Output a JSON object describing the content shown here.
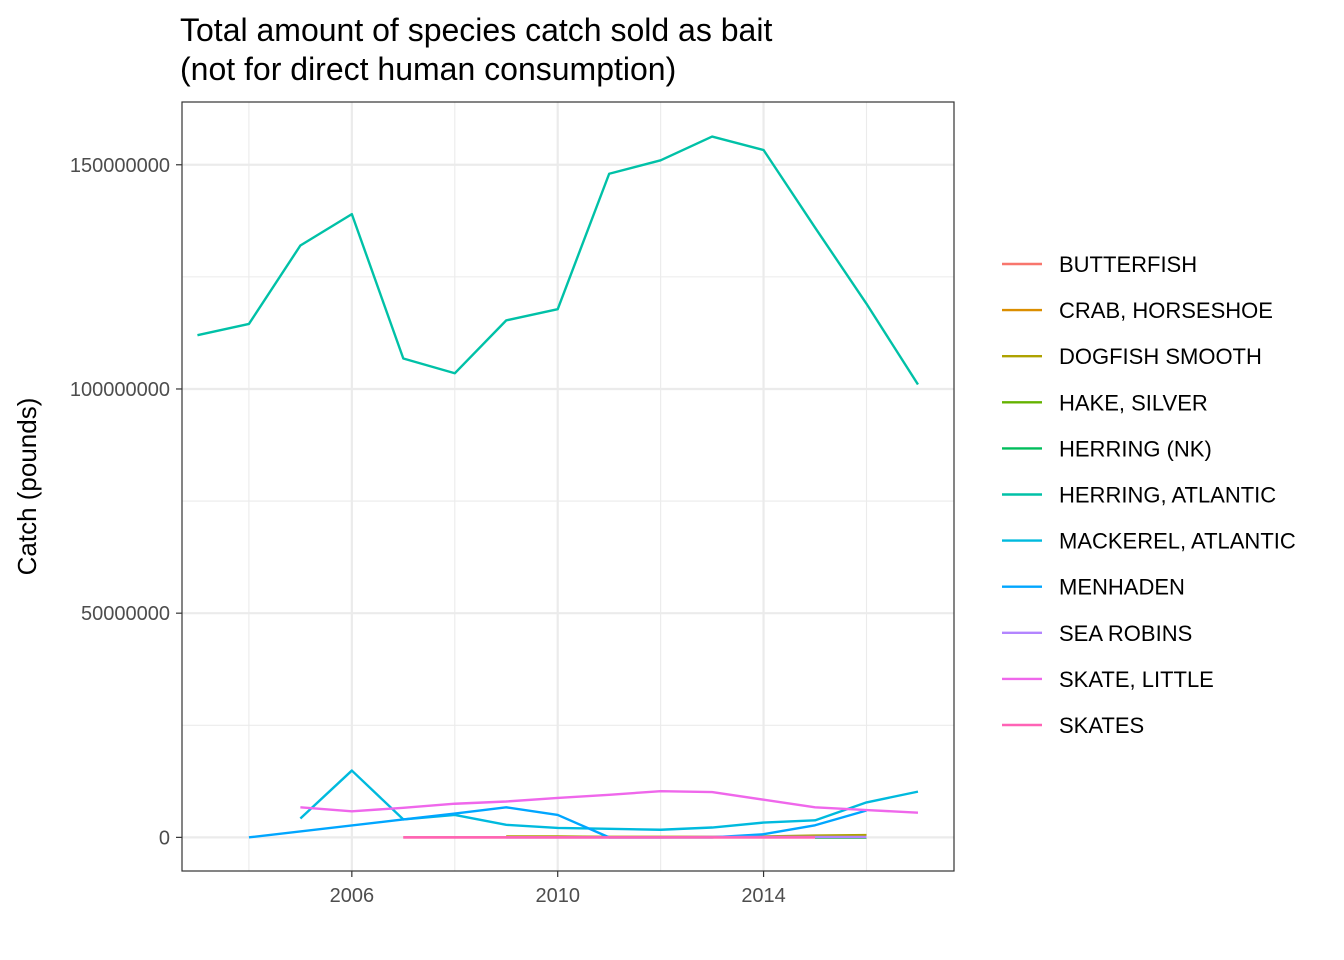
{
  "chart_data": {
    "type": "line",
    "title_lines": [
      "Total amount of species catch sold as bait",
      "(not for direct human consumption)"
    ],
    "xlabel": "",
    "ylabel": "Catch (pounds)",
    "xlim": [
      2002.7,
      2017.7
    ],
    "ylim": [
      -7500000,
      164000000
    ],
    "x_ticks": [
      2006,
      2010,
      2014
    ],
    "x_tick_labels": [
      "2006",
      "2010",
      "2014"
    ],
    "y_ticks": [
      0,
      50000000,
      100000000,
      150000000
    ],
    "y_tick_labels": [
      "0",
      "50000000",
      "100000000",
      "150000000"
    ],
    "grid": true,
    "legend_position": "right",
    "series": [
      {
        "name": "BUTTERFISH",
        "color": "#F8766D",
        "points": [
          [
            2007,
            0
          ],
          [
            2008,
            0
          ],
          [
            2009,
            0
          ],
          [
            2010,
            0
          ],
          [
            2011,
            0
          ],
          [
            2012,
            0
          ],
          [
            2013,
            0
          ],
          [
            2014,
            0
          ],
          [
            2015,
            0
          ],
          [
            2016,
            0
          ]
        ]
      },
      {
        "name": "CRAB, HORSESHOE",
        "color": "#DB8E00",
        "points": [
          [
            2009,
            100000
          ],
          [
            2010,
            100000
          ],
          [
            2011,
            100000
          ],
          [
            2012,
            100000
          ],
          [
            2013,
            100000
          ],
          [
            2014,
            100000
          ],
          [
            2015,
            200000
          ],
          [
            2016,
            300000
          ]
        ]
      },
      {
        "name": "DOGFISH SMOOTH",
        "color": "#AEA200",
        "points": [
          [
            2009,
            200000
          ],
          [
            2010,
            200000
          ],
          [
            2011,
            100000
          ],
          [
            2012,
            100000
          ],
          [
            2013,
            100000
          ],
          [
            2014,
            200000
          ],
          [
            2015,
            400000
          ],
          [
            2016,
            500000
          ]
        ]
      },
      {
        "name": "HAKE, SILVER",
        "color": "#64B200",
        "points": [
          [
            2015,
            0
          ],
          [
            2016,
            0
          ]
        ]
      },
      {
        "name": "HERRING (NK)",
        "color": "#00BD5C",
        "points": [
          [
            2015,
            0
          ],
          [
            2016,
            0
          ]
        ]
      },
      {
        "name": "HERRING, ATLANTIC",
        "color": "#00C1A7",
        "points": [
          [
            2003,
            112000000
          ],
          [
            2004,
            114500000
          ],
          [
            2005,
            132000000
          ],
          [
            2006,
            139000000
          ],
          [
            2007,
            106800000
          ],
          [
            2008,
            103500000
          ],
          [
            2009,
            115300000
          ],
          [
            2010,
            117800000
          ],
          [
            2011,
            148000000
          ],
          [
            2012,
            151000000
          ],
          [
            2013,
            156300000
          ],
          [
            2014,
            153300000
          ],
          [
            2015,
            136000000
          ],
          [
            2016,
            119000000
          ],
          [
            2017,
            101000000
          ]
        ]
      },
      {
        "name": "MACKEREL, ATLANTIC",
        "color": "#00BADE",
        "points": [
          [
            2005,
            4200000
          ],
          [
            2006,
            14900000
          ],
          [
            2007,
            4000000
          ],
          [
            2008,
            5000000
          ],
          [
            2009,
            2800000
          ],
          [
            2010,
            2100000
          ],
          [
            2011,
            1900000
          ],
          [
            2012,
            1700000
          ],
          [
            2013,
            2200000
          ],
          [
            2014,
            3300000
          ],
          [
            2015,
            3800000
          ],
          [
            2016,
            7800000
          ],
          [
            2017,
            10200000
          ]
        ]
      },
      {
        "name": "MENHADEN",
        "color": "#00A6FF",
        "points": [
          [
            2004,
            0
          ],
          [
            2007,
            4000000
          ],
          [
            2008,
            5300000
          ],
          [
            2009,
            6700000
          ],
          [
            2010,
            5000000
          ],
          [
            2011,
            0
          ],
          [
            2012,
            0
          ],
          [
            2013,
            0
          ],
          [
            2014,
            700000
          ],
          [
            2015,
            2700000
          ],
          [
            2016,
            6000000
          ]
        ]
      },
      {
        "name": "SEA ROBINS",
        "color": "#B385FF",
        "points": [
          [
            2009,
            0
          ],
          [
            2010,
            0
          ],
          [
            2011,
            0
          ],
          [
            2012,
            0
          ],
          [
            2013,
            100000
          ],
          [
            2014,
            100000
          ],
          [
            2015,
            100000
          ],
          [
            2016,
            100000
          ]
        ]
      },
      {
        "name": "SKATE, LITTLE",
        "color": "#EF67EB",
        "points": [
          [
            2005,
            6700000
          ],
          [
            2006,
            5800000
          ],
          [
            2007,
            6600000
          ],
          [
            2008,
            7500000
          ],
          [
            2009,
            8000000
          ],
          [
            2010,
            8800000
          ],
          [
            2011,
            9500000
          ],
          [
            2012,
            10300000
          ],
          [
            2013,
            10100000
          ],
          [
            2014,
            8400000
          ],
          [
            2015,
            6700000
          ],
          [
            2016,
            6100000
          ],
          [
            2017,
            5500000
          ]
        ]
      },
      {
        "name": "SKATES",
        "color": "#FF63B6",
        "points": [
          [
            2007,
            0
          ],
          [
            2008,
            0
          ],
          [
            2009,
            0
          ],
          [
            2010,
            0
          ],
          [
            2011,
            0
          ],
          [
            2012,
            0
          ],
          [
            2013,
            0
          ],
          [
            2014,
            0
          ],
          [
            2015,
            0
          ]
        ]
      }
    ]
  }
}
